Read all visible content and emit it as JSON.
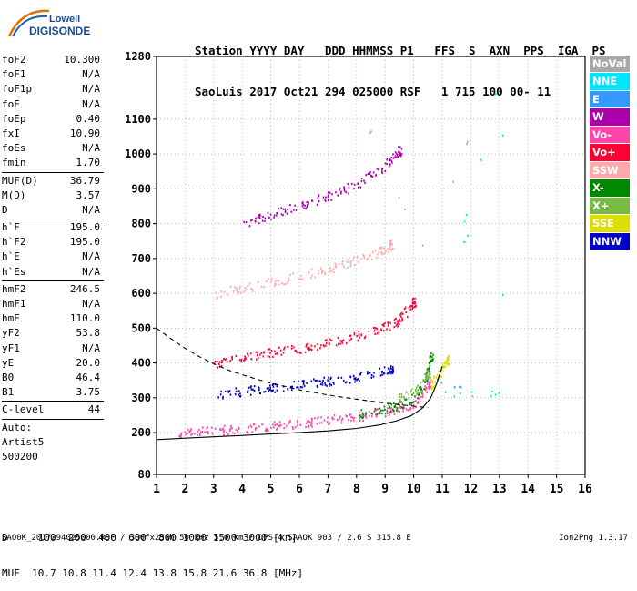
{
  "logo": {
    "line1": "Lowell",
    "line2": "DIGISONDE"
  },
  "header": {
    "line1": "Station YYYY DAY   DDD HHMMSS P1   FFS  S  AXN  PPS  IGA  PS",
    "line2": "SaoLuis 2017 Oct21 294 025000 RSF   1 715 100 00- 11"
  },
  "params": {
    "group1": [
      {
        "name": "foF2",
        "value": "10.300"
      },
      {
        "name": "foF1",
        "value": "N/A"
      },
      {
        "name": "foF1p",
        "value": "N/A"
      },
      {
        "name": "foE",
        "value": "N/A"
      },
      {
        "name": "foEp",
        "value": "0.40"
      },
      {
        "name": "fxI",
        "value": "10.90"
      },
      {
        "name": "foEs",
        "value": "N/A"
      },
      {
        "name": "fmin",
        "value": "1.70"
      }
    ],
    "group2": [
      {
        "name": "MUF(D)",
        "value": "36.79"
      },
      {
        "name": "M(D)",
        "value": "3.57"
      },
      {
        "name": "D",
        "value": "N/A"
      }
    ],
    "group3": [
      {
        "name": "h`F",
        "value": "195.0"
      },
      {
        "name": "h`F2",
        "value": "195.0"
      },
      {
        "name": "h`E",
        "value": "N/A"
      },
      {
        "name": "h`Es",
        "value": "N/A"
      }
    ],
    "group4": [
      {
        "name": "hmF2",
        "value": "246.5"
      },
      {
        "name": "hmF1",
        "value": "N/A"
      },
      {
        "name": "hmE",
        "value": "110.0"
      },
      {
        "name": "yF2",
        "value": "53.8"
      },
      {
        "name": "yF1",
        "value": "N/A"
      },
      {
        "name": "yE",
        "value": "20.0"
      },
      {
        "name": "B0",
        "value": "46.4"
      },
      {
        "name": "B1",
        "value": "3.75"
      }
    ],
    "group5": [
      {
        "name": "C-level",
        "value": "44"
      }
    ],
    "group6": [
      {
        "name": "Auto:",
        "value": ""
      },
      {
        "name": "Artist5",
        "value": ""
      },
      {
        "name": "500200",
        "value": ""
      }
    ]
  },
  "legend": [
    {
      "label": "NoVal",
      "color": "#a8a8a8"
    },
    {
      "label": "NNE",
      "color": "#00e5ff"
    },
    {
      "label": "E",
      "color": "#3399ff"
    },
    {
      "label": "W",
      "color": "#aa00aa"
    },
    {
      "label": "Vo-",
      "color": "#ff44aa"
    },
    {
      "label": "Vo+",
      "color": "#ff0033"
    },
    {
      "label": "SSW",
      "color": "#ffaaaa"
    },
    {
      "label": "X-",
      "color": "#008800"
    },
    {
      "label": "X+",
      "color": "#77bb44"
    },
    {
      "label": "SSE",
      "color": "#dddd00"
    },
    {
      "label": "NNW",
      "color": "#0000cc"
    }
  ],
  "footer": {
    "line1": "D     100  200  400  600  800 1000 1500 3000 [km]",
    "line2": "MUF  10.7 10.8 11.4 12.4 13.8 15.8 21.6 36.8 [MHz]",
    "file": "SAO0K_2017294025000.RSF / 300fx256h 50 kHz 5.0 km / DPS-4 SAAOK 903 / 2.6 S 315.8 E",
    "version": "Ion2Png 1.3.17"
  },
  "chart_data": {
    "type": "scatter",
    "title": "",
    "xlabel": "",
    "ylabel": "",
    "xlim": [
      1,
      16
    ],
    "ylim": [
      80,
      1280
    ],
    "x_ticks": [
      1,
      2,
      3,
      4,
      5,
      6,
      7,
      8,
      9,
      10,
      11,
      12,
      13,
      14,
      15,
      16
    ],
    "y_ticks": [
      80,
      200,
      300,
      400,
      500,
      600,
      700,
      800,
      900,
      1000,
      1100,
      1280
    ],
    "grid": true,
    "legend_position": "right",
    "series": [
      {
        "name": "Vo-",
        "color": "#ff44aa",
        "points": [
          [
            1.7,
            200
          ],
          [
            2.2,
            203
          ],
          [
            2.8,
            206
          ],
          [
            3.4,
            210
          ],
          [
            4.0,
            214
          ],
          [
            4.6,
            218
          ],
          [
            5.2,
            222
          ],
          [
            5.8,
            226
          ],
          [
            6.4,
            232
          ],
          [
            7.0,
            238
          ],
          [
            7.6,
            244
          ],
          [
            8.2,
            250
          ],
          [
            8.8,
            258
          ],
          [
            9.3,
            266
          ],
          [
            9.8,
            278
          ],
          [
            10.2,
            300
          ],
          [
            10.5,
            340
          ]
        ]
      },
      {
        "name": "Vo+",
        "color": "#ff0033",
        "points": [
          [
            3.0,
            400
          ],
          [
            3.6,
            408
          ],
          [
            4.2,
            418
          ],
          [
            4.8,
            428
          ],
          [
            5.4,
            436
          ],
          [
            6.0,
            444
          ],
          [
            6.6,
            452
          ],
          [
            7.2,
            462
          ],
          [
            7.8,
            474
          ],
          [
            8.4,
            488
          ],
          [
            9.0,
            505
          ],
          [
            9.4,
            520
          ],
          [
            9.7,
            545
          ],
          [
            10.0,
            575
          ]
        ]
      },
      {
        "name": "SSW",
        "color": "#ffaaaa",
        "points": [
          [
            3.0,
            600
          ],
          [
            3.8,
            612
          ],
          [
            4.6,
            626
          ],
          [
            5.4,
            640
          ],
          [
            6.2,
            654
          ],
          [
            7.0,
            670
          ],
          [
            7.6,
            686
          ],
          [
            8.2,
            702
          ],
          [
            8.8,
            722
          ],
          [
            9.2,
            740
          ]
        ]
      },
      {
        "name": "W",
        "color": "#aa00aa",
        "points": [
          [
            4.0,
            800
          ],
          [
            4.6,
            816
          ],
          [
            5.2,
            832
          ],
          [
            5.8,
            848
          ],
          [
            6.4,
            864
          ],
          [
            7.0,
            880
          ],
          [
            7.6,
            900
          ],
          [
            8.2,
            925
          ],
          [
            8.8,
            955
          ],
          [
            9.2,
            985
          ],
          [
            9.5,
            1010
          ]
        ]
      },
      {
        "name": "NNW",
        "color": "#0000cc",
        "points": [
          [
            3.2,
            310
          ],
          [
            3.8,
            318
          ],
          [
            4.4,
            324
          ],
          [
            5.0,
            330
          ],
          [
            5.6,
            336
          ],
          [
            6.2,
            342
          ],
          [
            6.8,
            348
          ],
          [
            7.4,
            354
          ],
          [
            8.0,
            362
          ],
          [
            8.6,
            372
          ],
          [
            9.2,
            385
          ]
        ]
      },
      {
        "name": "X-",
        "color": "#008800",
        "points": [
          [
            8.0,
            255
          ],
          [
            8.6,
            262
          ],
          [
            9.2,
            272
          ],
          [
            9.6,
            285
          ],
          [
            10.0,
            305
          ],
          [
            10.3,
            335
          ],
          [
            10.5,
            380
          ],
          [
            10.6,
            420
          ]
        ]
      },
      {
        "name": "X+",
        "color": "#77bb44",
        "points": [
          [
            9.4,
            300
          ],
          [
            9.8,
            310
          ],
          [
            10.2,
            330
          ],
          [
            10.5,
            370
          ]
        ]
      },
      {
        "name": "SSE",
        "color": "#dddd00",
        "points": [
          [
            10.6,
            330
          ],
          [
            10.8,
            360
          ],
          [
            11.0,
            390
          ],
          [
            11.2,
            410
          ]
        ]
      },
      {
        "name": "NNE",
        "color": "#00e5ff",
        "points": [
          [
            11.0,
            320
          ],
          [
            11.6,
            318
          ],
          [
            12.2,
            316
          ],
          [
            12.8,
            315
          ],
          [
            13.2,
            315
          ],
          [
            13.0,
            1210
          ],
          [
            11.8,
            820
          ],
          [
            11.8,
            760
          ]
        ]
      },
      {
        "name": "E",
        "color": "#3399ff",
        "points": [
          [
            10.8,
            360
          ],
          [
            11.2,
            330
          ],
          [
            11.6,
            322
          ]
        ]
      },
      {
        "name": "NoVal",
        "color": "#a8a8a8",
        "points": [
          [
            11.8,
            1030
          ],
          [
            11.8,
            1000
          ],
          [
            10.2,
            720
          ],
          [
            8.5,
            1065
          ]
        ]
      }
    ],
    "curves": [
      {
        "name": "model_trace",
        "style": "solid",
        "points": [
          [
            1,
            180
          ],
          [
            2,
            184
          ],
          [
            3,
            188
          ],
          [
            4,
            192
          ],
          [
            5,
            196
          ],
          [
            6,
            200
          ],
          [
            7,
            205
          ],
          [
            8,
            212
          ],
          [
            8.8,
            222
          ],
          [
            9.4,
            234
          ],
          [
            9.9,
            248
          ],
          [
            10.3,
            270
          ],
          [
            10.6,
            300
          ],
          [
            10.8,
            340
          ],
          [
            11.0,
            390
          ]
        ]
      },
      {
        "name": "muf_curve",
        "style": "dashed",
        "points": [
          [
            1,
            500
          ],
          [
            1.5,
            470
          ],
          [
            2,
            442
          ],
          [
            2.5,
            418
          ],
          [
            3,
            398
          ],
          [
            3.5,
            380
          ],
          [
            4,
            366
          ],
          [
            5,
            342
          ],
          [
            6,
            323
          ],
          [
            7,
            308
          ],
          [
            8,
            296
          ],
          [
            9,
            285
          ],
          [
            10,
            276
          ],
          [
            10.5,
            272
          ]
        ]
      }
    ]
  }
}
